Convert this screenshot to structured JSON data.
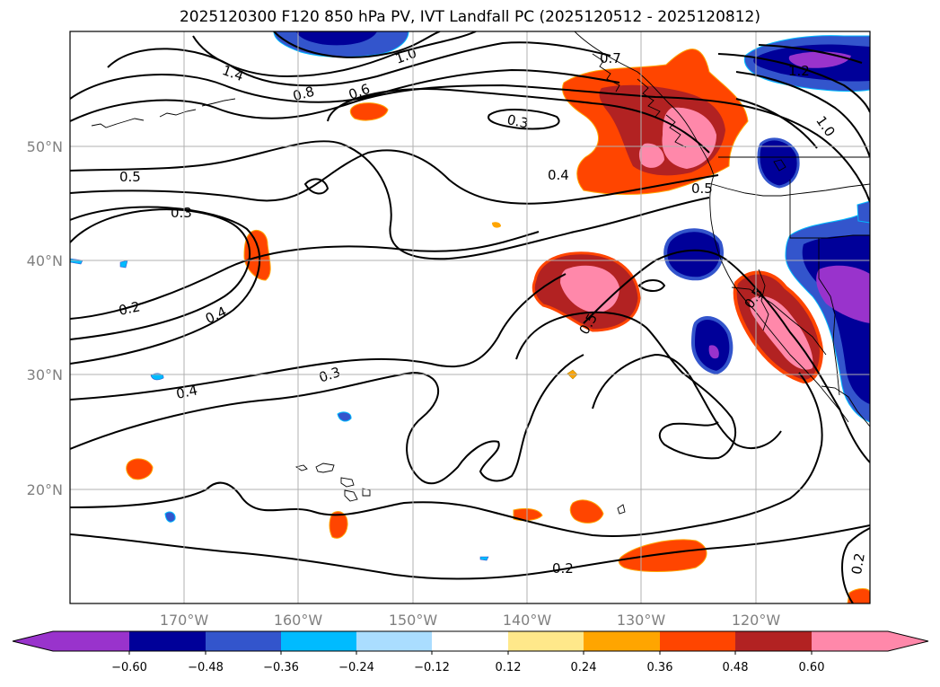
{
  "title": "2025120300 F120 850 hPa PV, IVT Landfall PC (2025120512 - 2025120812)",
  "map": {
    "lon_range": [
      -180,
      -110
    ],
    "lat_range": [
      10,
      60
    ],
    "lat_labels": [
      "50°N",
      "40°N",
      "30°N",
      "20°N"
    ],
    "lon_labels": [
      "170°W",
      "160°W",
      "150°W",
      "140°W",
      "130°W",
      "120°W"
    ],
    "grid": true
  },
  "colorbar": {
    "tick_labels": [
      "−0.60",
      "−0.48",
      "−0.36",
      "−0.24",
      "−0.12",
      "0.12",
      "0.24",
      "0.36",
      "0.48",
      "0.60"
    ],
    "extend": "both",
    "colors": [
      "#9933cc",
      "#000099",
      "#3355cc",
      "#00bbff",
      "#aaddff",
      "#ffffff",
      "#ffe88a",
      "#ffa500",
      "#ff4500",
      "#b22222",
      "#ff88aa"
    ]
  },
  "contour_labels": [
    "1.4",
    "1.0",
    "1.2",
    "1.0",
    "0.8",
    "0.6",
    "0.7",
    "0.3",
    "0.4",
    "0.5",
    "0.5",
    "0.3",
    "0.2",
    "0.4",
    "0.3",
    "0.4",
    "0.5",
    "0.5",
    "0.2",
    "0.2"
  ]
}
